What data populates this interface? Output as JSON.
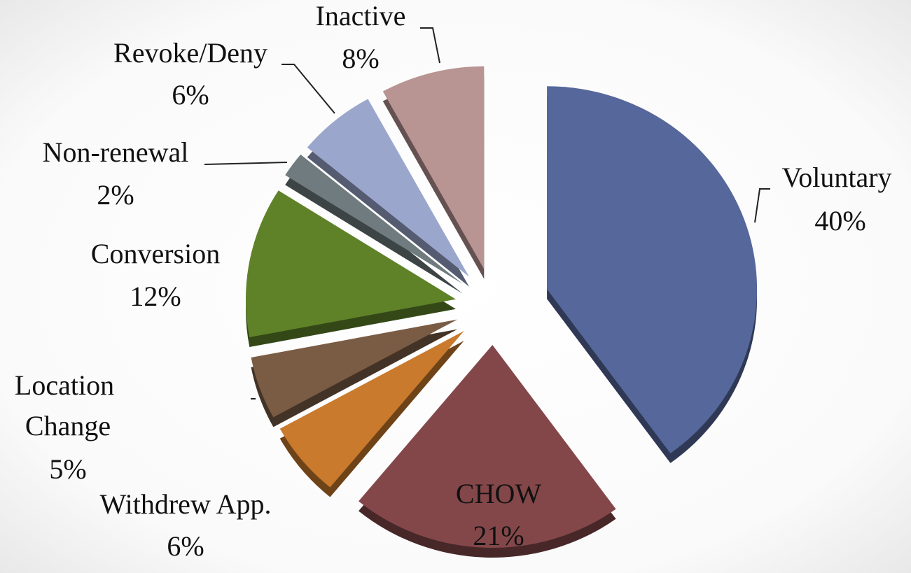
{
  "chart_data": {
    "type": "pie",
    "categories": [
      "Voluntary",
      "CHOW",
      "Withdrew App.",
      "Location Change",
      "Conversion",
      "Non-renewal",
      "Revoke/Deny",
      "Inactive"
    ],
    "values": [
      40,
      21,
      6,
      5,
      12,
      2,
      6,
      8
    ],
    "value_labels": [
      "40%",
      "21%",
      "6%",
      "5%",
      "12%",
      "2%",
      "6%",
      "8%"
    ],
    "colors": [
      "#55679b",
      "#83474a",
      "#c97a2c",
      "#7a5c45",
      "#5f8229",
      "#6f7b7e",
      "#9aa6cb",
      "#b89493"
    ]
  }
}
